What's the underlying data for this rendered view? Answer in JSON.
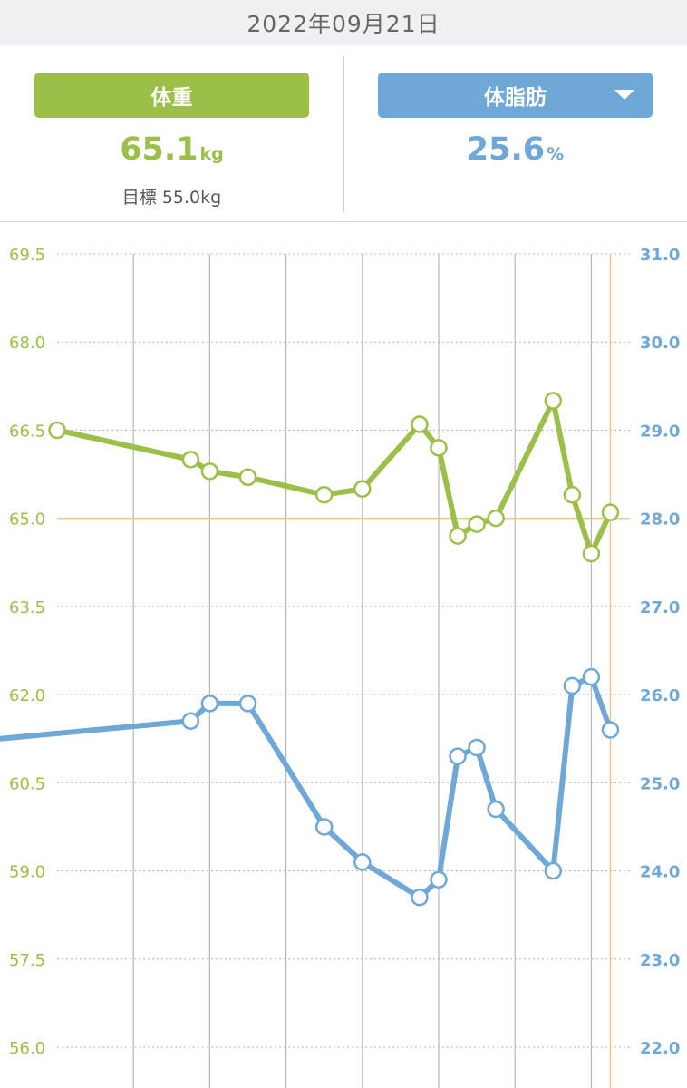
{
  "header": {
    "date": "2022年09月21日"
  },
  "weight_panel": {
    "button_label": "体重",
    "value": "65.1",
    "unit": "kg",
    "goal_label": "目標",
    "goal_value": "55.0kg",
    "color": "#9cbf4a"
  },
  "fat_panel": {
    "button_label": "体脂肪",
    "value": "25.6",
    "unit": "%",
    "color": "#6fa7d6",
    "dropdown_icon": "chevron-down-icon"
  },
  "chart_data": {
    "type": "line",
    "left_axis": {
      "min": 56.0,
      "max": 69.5,
      "ticks": [
        "69.5",
        "68.0",
        "66.5",
        "65.0",
        "63.5",
        "62.0",
        "60.5",
        "59.0",
        "57.5",
        "56.0"
      ]
    },
    "right_axis": {
      "min": 22.0,
      "max": 31.0,
      "ticks": [
        "31.0",
        "30.0",
        "29.0",
        "28.0",
        "27.0",
        "26.0",
        "25.0",
        "24.0",
        "23.0",
        "22.0"
      ]
    },
    "reference_line_left": 65.0,
    "series": [
      {
        "axis": "left",
        "color": "#9cbf4a",
        "points": [
          {
            "x": 0,
            "y": 66.5,
            "marker": true
          },
          {
            "x": 7,
            "y": 66.0,
            "marker": true
          },
          {
            "x": 8,
            "y": 65.8,
            "marker": true
          },
          {
            "x": 10,
            "y": 65.7,
            "marker": true
          },
          {
            "x": 14,
            "y": 65.4,
            "marker": true
          },
          {
            "x": 16,
            "y": 65.5,
            "marker": true
          },
          {
            "x": 19,
            "y": 66.6,
            "marker": true
          },
          {
            "x": 20,
            "y": 66.2,
            "marker": true
          },
          {
            "x": 21,
            "y": 64.7,
            "marker": true
          },
          {
            "x": 22,
            "y": 64.9,
            "marker": true
          },
          {
            "x": 23,
            "y": 65.0,
            "marker": true
          },
          {
            "x": 26,
            "y": 67.0,
            "marker": true
          },
          {
            "x": 27,
            "y": 65.4,
            "marker": true
          },
          {
            "x": 28,
            "y": 64.4,
            "marker": true
          },
          {
            "x": 29,
            "y": 65.1,
            "marker": true
          }
        ]
      },
      {
        "axis": "right",
        "color": "#6fa7d6",
        "points": [
          {
            "x": -3,
            "y": 25.5,
            "marker": false
          },
          {
            "x": 7,
            "y": 25.7,
            "marker": true
          },
          {
            "x": 8,
            "y": 25.9,
            "marker": true
          },
          {
            "x": 10,
            "y": 25.9,
            "marker": true
          },
          {
            "x": 14,
            "y": 24.5,
            "marker": true
          },
          {
            "x": 16,
            "y": 24.1,
            "marker": true
          },
          {
            "x": 19,
            "y": 23.7,
            "marker": true
          },
          {
            "x": 20,
            "y": 23.9,
            "marker": true
          },
          {
            "x": 21,
            "y": 25.3,
            "marker": true
          },
          {
            "x": 22,
            "y": 25.4,
            "marker": true
          },
          {
            "x": 23,
            "y": 24.7,
            "marker": true
          },
          {
            "x": 26,
            "y": 24.0,
            "marker": true
          },
          {
            "x": 27,
            "y": 26.1,
            "marker": true
          },
          {
            "x": 28,
            "y": 26.2,
            "marker": true
          },
          {
            "x": 29,
            "y": 25.6,
            "marker": true
          }
        ]
      }
    ],
    "vertical_gridlines_x": [
      4,
      8,
      12,
      16,
      20,
      24,
      28
    ],
    "selected_x": 29
  }
}
